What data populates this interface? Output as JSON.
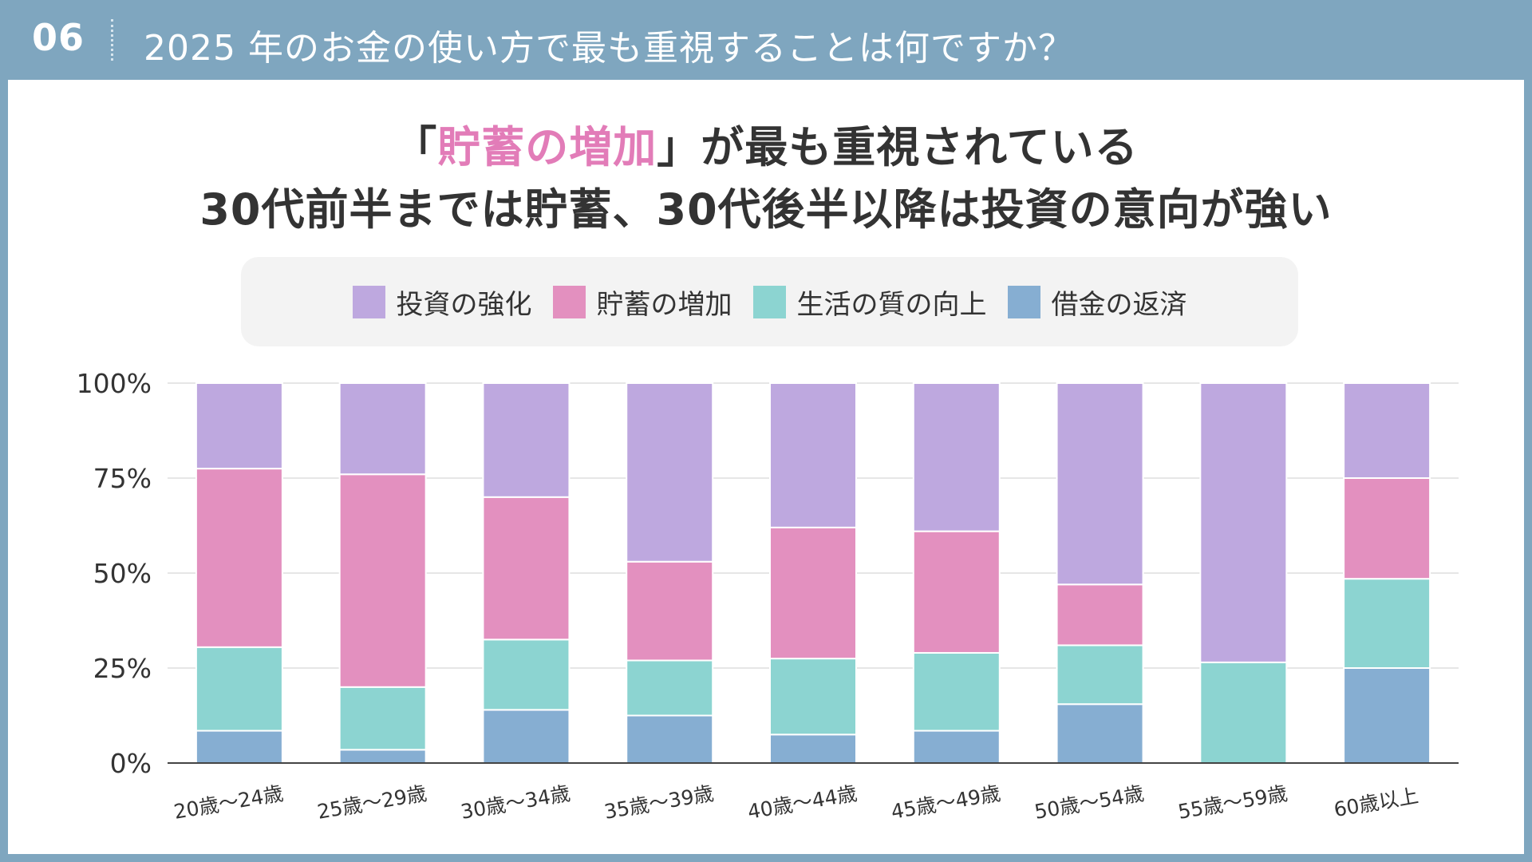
{
  "header": {
    "number": "06",
    "title": "2025 年のお金の使い方で最も重視することは何ですか？"
  },
  "headline": {
    "line1_open": "「",
    "line1_accent": "貯蓄の増加",
    "line1_close": "」が最も重視されている",
    "line2": "30代前半までは貯蓄、30代後半以降は投資の意向が強い",
    "accent_color": "#e27cb8"
  },
  "chart_data": {
    "type": "bar",
    "stacked": true,
    "categories": [
      "20歳〜24歳",
      "25歳〜29歳",
      "30歳〜34歳",
      "35歳〜39歳",
      "40歳〜44歳",
      "45歳〜49歳",
      "50歳〜54歳",
      "55歳〜59歳",
      "60歳以上"
    ],
    "series": [
      {
        "name": "借金の返済",
        "color": "#86aed2",
        "values": [
          8.5,
          3.5,
          14,
          12.5,
          7.5,
          8.5,
          15.5,
          0,
          25
        ]
      },
      {
        "name": "生活の質の向上",
        "color": "#8cd4d1",
        "values": [
          22,
          16.5,
          18.5,
          14.5,
          20,
          20.5,
          15.5,
          26.5,
          23.5
        ]
      },
      {
        "name": "貯蓄の増加",
        "color": "#e390bf",
        "values": [
          47,
          56,
          37.5,
          26,
          34.5,
          32,
          16,
          0,
          26.5
        ]
      },
      {
        "name": "投資の強化",
        "color": "#bea8df",
        "values": [
          22.5,
          24,
          30,
          47,
          38,
          39,
          53,
          73.5,
          25
        ]
      }
    ],
    "legend_order": [
      "投資の強化",
      "貯蓄の増加",
      "生活の質の向上",
      "借金の返済"
    ],
    "yticks": [
      "0%",
      "25%",
      "50%",
      "75%",
      "100%"
    ],
    "ylim": [
      0,
      100
    ],
    "grid": true,
    "legend_position": "top"
  }
}
